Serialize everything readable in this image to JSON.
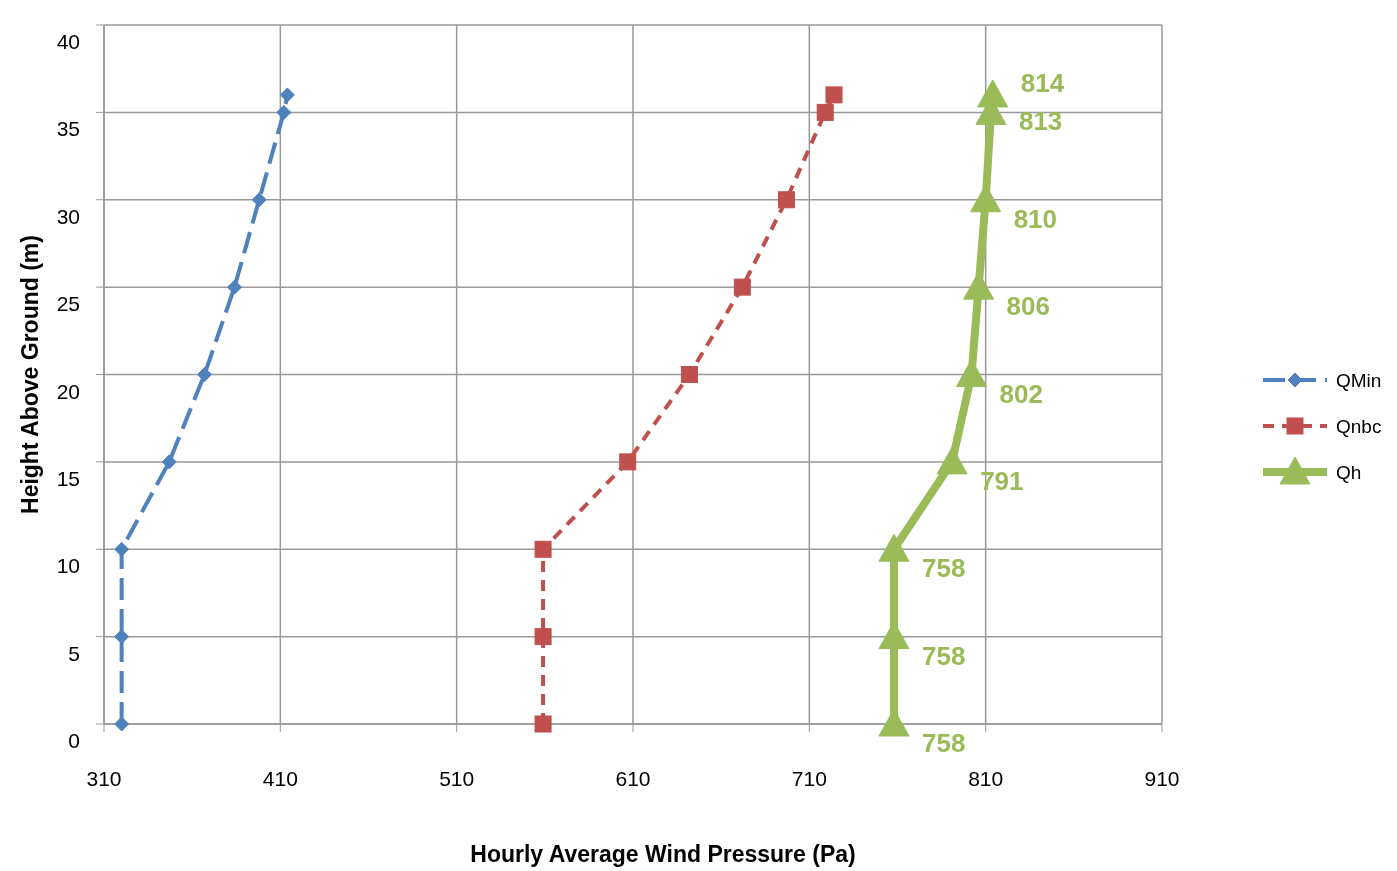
{
  "chart_data": {
    "type": "line",
    "orientation": "horizontal",
    "xlabel": "Hourly Average Wind Pressure (Pa)",
    "ylabel": "Height Above Ground (m)",
    "xlim": [
      310,
      910
    ],
    "xticks": [
      310,
      410,
      510,
      610,
      710,
      810,
      910
    ],
    "ylim": [
      0,
      40
    ],
    "yticks": [
      0,
      5,
      10,
      15,
      20,
      25,
      30,
      35,
      40
    ],
    "grid": true,
    "legend": "right",
    "series": [
      {
        "name": "QMin",
        "color": "#4f81bd",
        "marker": "diamond",
        "line_style": "dashed",
        "x": [
          0,
          5,
          10,
          15,
          20,
          25,
          30,
          35,
          36
        ],
        "values": [
          320,
          320,
          320,
          347,
          367,
          384,
          398,
          412,
          414
        ]
      },
      {
        "name": "Qnbc",
        "color": "#c0504d",
        "marker": "square",
        "line_style": "dotted",
        "x": [
          0,
          5,
          10,
          15,
          20,
          25,
          30,
          35,
          36
        ],
        "values": [
          559,
          559,
          559,
          607,
          642,
          672,
          697,
          719,
          724
        ]
      },
      {
        "name": "Qh",
        "color": "#9bbb59",
        "marker": "triangle",
        "line_style": "solid",
        "x": [
          0,
          5,
          10,
          15,
          20,
          25,
          30,
          35,
          36
        ],
        "values": [
          758,
          758,
          758,
          791,
          802,
          806,
          810,
          813,
          814
        ],
        "value_labels": [
          "758",
          "758",
          "758",
          "791",
          "802",
          "806",
          "810",
          "813",
          "814"
        ]
      }
    ]
  }
}
